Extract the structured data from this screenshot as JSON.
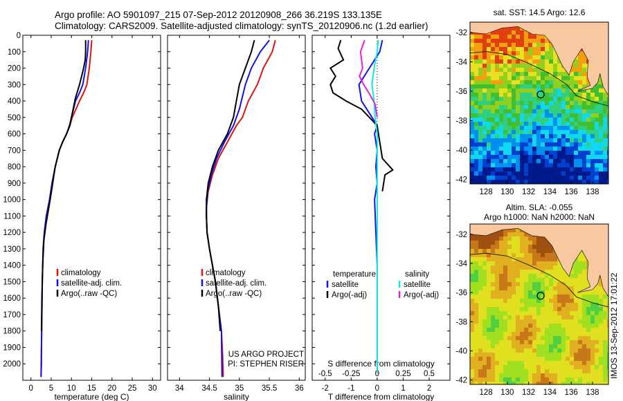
{
  "header": {
    "line1": "Argo profile: AO 5901097_215 07-Sep-2012 20120908_266 36.219S 133.135E",
    "line2": "Climatology: CARS2009. Satellite-adjusted climatology: synTS_20120906.nc (1.2d earlier)"
  },
  "side_label": "IMOS 13-Sep-2012 17:01:22",
  "colors": {
    "red": "#e01010",
    "blue": "#1010f0",
    "black": "#000000",
    "cyan": "#10e8e8",
    "magenta": "#e020e0",
    "land": "#f8c8a0"
  },
  "chart_data": [
    {
      "type": "line",
      "xlabel": "temperature (deg C)",
      "ylim": [
        2100,
        0
      ],
      "xlim": [
        -2,
        32
      ],
      "xticks": [
        0,
        5,
        10,
        15,
        20,
        25,
        30
      ],
      "yticks": [
        0,
        100,
        200,
        300,
        400,
        500,
        600,
        700,
        800,
        900,
        1000,
        1100,
        1200,
        1300,
        1400,
        1500,
        1600,
        1700,
        1800,
        1900,
        2000
      ],
      "legend": {
        "location": "center",
        "entries": [
          "climatology",
          "satellite-adj. clim.",
          "Argo(..raw -QC)"
        ]
      },
      "series": [
        {
          "name": "climatology",
          "color": "red",
          "x": [
            15,
            14.8,
            14.4,
            13.8,
            13,
            12,
            10.2,
            9.6,
            8.8,
            7.8,
            7,
            6,
            5.2,
            4.6,
            3.8,
            3.3,
            3,
            2.8,
            2.7,
            2.6,
            2.6,
            2.5
          ],
          "y": [
            30,
            100,
            200,
            300,
            350,
            400,
            500,
            550,
            600,
            650,
            700,
            800,
            900,
            1000,
            1100,
            1200,
            1300,
            1500,
            1700,
            1900,
            2000,
            2080
          ]
        },
        {
          "name": "satellite-adj. clim.",
          "color": "blue",
          "x": [
            14.2,
            14,
            13.5,
            12.8,
            12,
            11,
            10,
            9.5,
            8.8,
            7.8,
            7,
            6,
            5.2,
            4.6,
            3.8,
            3.3,
            3,
            2.8,
            2.7,
            2.6,
            2.5
          ],
          "y": [
            30,
            100,
            200,
            300,
            350,
            400,
            500,
            550,
            600,
            650,
            700,
            800,
            900,
            1000,
            1100,
            1200,
            1300,
            1500,
            1700,
            1900,
            2080
          ]
        },
        {
          "name": "Argo(..raw -QC)",
          "color": "black",
          "x": [
            13.5,
            13.5,
            13.4,
            13,
            12.5,
            12,
            11,
            10,
            9.6,
            8.8,
            7.8,
            7,
            6,
            5,
            4.4,
            3.7,
            3.2,
            2.9,
            2.7,
            2.6
          ],
          "y": [
            30,
            100,
            150,
            200,
            250,
            300,
            380,
            500,
            550,
            600,
            650,
            700,
            800,
            960,
            1050,
            1150,
            1250,
            1400,
            1600,
            1800
          ]
        }
      ]
    },
    {
      "type": "line",
      "xlabel": "salinity",
      "ylim": [
        2100,
        0
      ],
      "xlim": [
        33.8,
        36.1
      ],
      "xticks": [
        34,
        34.5,
        35,
        35.5,
        36
      ],
      "xticklabels": [
        "34",
        "34.5",
        "35",
        "35.5",
        "36"
      ],
      "legend": {
        "location": "center",
        "entries": [
          "climatology",
          "satellite-adj. clim.",
          "Argo(..raw -QC)"
        ]
      },
      "annotations": [
        "US ARGO PROJECT",
        "PI: STEPHEN RISER"
      ],
      "series": [
        {
          "name": "climatology",
          "color": "red",
          "x": [
            35.6,
            35.55,
            35.4,
            35.3,
            35.15,
            35.05,
            34.95,
            34.8,
            34.65,
            34.55,
            34.48,
            34.45,
            34.45,
            34.46,
            34.5,
            34.55,
            34.6,
            34.65,
            34.7,
            34.72,
            34.73
          ],
          "y": [
            30,
            100,
            200,
            300,
            400,
            500,
            550,
            650,
            750,
            850,
            950,
            1050,
            1100,
            1200,
            1300,
            1400,
            1500,
            1650,
            1800,
            1950,
            2080
          ]
        },
        {
          "name": "satellite-adj. clim.",
          "color": "blue",
          "x": [
            35.5,
            35.35,
            35.2,
            35.1,
            35,
            34.9,
            34.75,
            34.62,
            34.53,
            34.47,
            34.45,
            34.45,
            34.46,
            34.5,
            34.55,
            34.6,
            34.65,
            34.7,
            34.71
          ],
          "y": [
            30,
            100,
            200,
            300,
            450,
            550,
            650,
            750,
            850,
            950,
            1050,
            1100,
            1200,
            1300,
            1400,
            1500,
            1650,
            1800,
            2080
          ]
        },
        {
          "name": "Argo(..raw -QC)",
          "color": "black",
          "x": [
            35.25,
            35.2,
            35.1,
            35,
            34.95,
            34.9,
            34.8,
            34.65,
            34.55,
            34.48,
            34.45,
            34.45,
            34.46,
            34.5,
            34.55,
            34.6,
            34.65,
            34.68
          ],
          "y": [
            30,
            100,
            200,
            300,
            400,
            500,
            600,
            700,
            800,
            900,
            1000,
            1100,
            1200,
            1300,
            1400,
            1500,
            1650,
            1800
          ]
        }
      ]
    },
    {
      "type": "line",
      "xlabel": "T difference from climatology",
      "x2label": "S difference from climatology",
      "ylim": [
        2100,
        0
      ],
      "xlim": [
        -2.5,
        2.8
      ],
      "xticks": [
        -2,
        -1,
        0,
        1,
        2
      ],
      "x2lim": [
        -0.625,
        0.7
      ],
      "x2ticks": [
        -0.5,
        -0.25,
        0,
        0.25,
        0.5
      ],
      "x2ticklabels": [
        "-0.5",
        "-0.25",
        "0",
        "0.25",
        "0.5"
      ],
      "legend": {
        "location": "center",
        "temperature_title": "temperature",
        "salinity_title": "salinity",
        "entries": [
          "satellite",
          "Argo(-adj)",
          "satellite",
          "Argo(-adj)"
        ]
      },
      "series": [
        {
          "name": "temperature satellite",
          "color": "blue",
          "axis": "T",
          "x": [
            0.2,
            0.1,
            -0.3,
            -0.7,
            -0.6,
            -0.2,
            0,
            -0.1,
            0,
            -0.05,
            0,
            -0.1,
            -0.05,
            0,
            0,
            0,
            0
          ],
          "y": [
            30,
            100,
            200,
            300,
            400,
            500,
            550,
            600,
            700,
            800,
            900,
            1000,
            1200,
            1400,
            1600,
            1800,
            2050
          ]
        },
        {
          "name": "temperature Argo(-adj)",
          "color": "black",
          "axis": "T",
          "x": [
            -1.4,
            -1.5,
            -1.3,
            -1.8,
            -1.6,
            -1.8,
            -1.7,
            -1.2,
            -0.6,
            0,
            0.1,
            0.2,
            0.6,
            0.3,
            0.2
          ],
          "y": [
            30,
            80,
            150,
            200,
            250,
            300,
            350,
            400,
            450,
            550,
            650,
            750,
            820,
            850,
            950
          ]
        },
        {
          "name": "salinity satellite",
          "color": "cyan",
          "axis": "S",
          "x": [
            0.01,
            0,
            -0.03,
            -0.05,
            -0.03,
            -0.02,
            0,
            0,
            0,
            0,
            0,
            0,
            0,
            0,
            0
          ],
          "y": [
            30,
            100,
            200,
            300,
            400,
            500,
            600,
            700,
            800,
            900,
            1000,
            1200,
            1500,
            1800,
            2050
          ]
        },
        {
          "name": "salinity Argo(-adj)",
          "color": "magenta",
          "axis": "S",
          "x": [
            -0.12,
            -0.16,
            -0.14,
            -0.17,
            -0.13,
            -0.08,
            -0.02,
            0
          ],
          "y": [
            30,
            100,
            200,
            250,
            300,
            350,
            420,
            500
          ]
        }
      ]
    },
    {
      "type": "heatmap",
      "title": "sat. SST: 14.5 Argo: 12.6",
      "xlim": [
        126.5,
        139.5
      ],
      "ylim": [
        -42.3,
        -31.3
      ],
      "xticks": [
        128,
        130,
        132,
        134,
        136,
        138
      ],
      "yticks": [
        -32,
        -34,
        -36,
        -38,
        -40,
        -42
      ],
      "marker": {
        "lon": 133.135,
        "lat": -36.219
      }
    },
    {
      "type": "heatmap",
      "title": "Altim. SLA: -0.055",
      "subtitle": "Argo h1000: NaN h2000: NaN",
      "xlim": [
        126.5,
        139.5
      ],
      "ylim": [
        -42.3,
        -31.3
      ],
      "xticks": [
        128,
        130,
        132,
        134,
        136,
        138
      ],
      "yticks": [
        -32,
        -34,
        -36,
        -38,
        -40,
        -42
      ],
      "marker": {
        "lon": 133.135,
        "lat": -36.219
      }
    }
  ]
}
